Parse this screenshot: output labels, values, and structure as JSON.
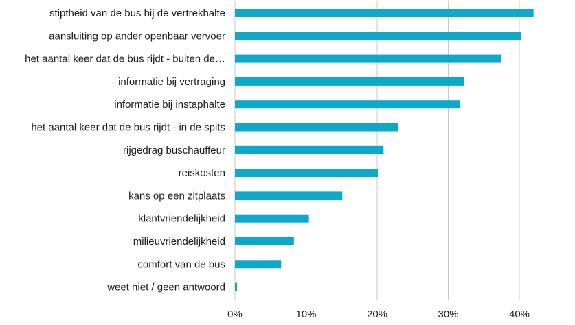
{
  "chart_data": {
    "type": "bar",
    "orientation": "horizontal",
    "categories": [
      "stiptheid van de bus bij de vertrekhalte",
      "aansluiting op ander openbaar vervoer",
      "het aantal keer dat de bus rijdt - buiten de…",
      "informatie bij vertraging",
      "informatie bij instaphalte",
      "het aantal keer dat de bus rijdt - in de spits",
      "rijgedrag buschauffeur",
      "reiskosten",
      "kans op een zitplaats",
      "klantvriendelijkheid",
      "milieuvriendelijkheid",
      "comfort van de bus",
      "weet niet / geen antwoord"
    ],
    "values": [
      42,
      40.2,
      37.4,
      32.2,
      31.7,
      23,
      20.9,
      20.1,
      15.1,
      10.4,
      8.3,
      6.5,
      0.3
    ],
    "xlim": [
      0,
      40
    ],
    "xticks": [
      "0%",
      "10%",
      "20%",
      "30%",
      "40%"
    ],
    "grid": true,
    "bar_color": "#0ea9c8"
  }
}
